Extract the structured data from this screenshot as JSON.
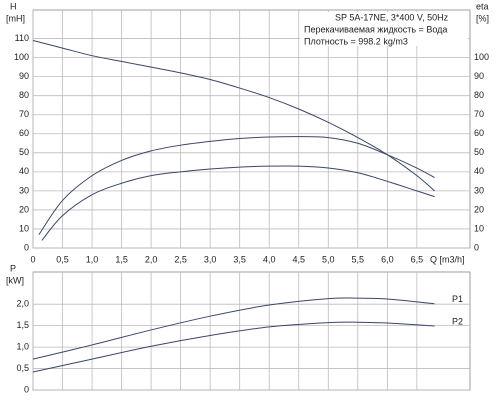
{
  "chart_data": [
    {
      "type": "line",
      "grid": true,
      "line_color": "#3a4668",
      "annotations": [
        "SP 5A-17NE, 3*400 V, 50Hz",
        "Перекачиваемая жидкость = Вода",
        "Плотность = 998.2 kg/m3"
      ],
      "ylabel": "H",
      "yunit": "[mH]",
      "y2label": "eta",
      "y2unit": "[%]",
      "xlabel": "Q [m3/h]",
      "xlim": [
        0,
        7.4
      ],
      "xticks": [
        0,
        {
          "value": 0.5,
          "label": "0,5"
        },
        {
          "value": 1,
          "label": "1,0"
        },
        {
          "value": 1.5,
          "label": "1,5"
        },
        {
          "value": 2,
          "label": "2,0"
        },
        {
          "value": 2.5,
          "label": "2,5"
        },
        {
          "value": 3,
          "label": "3,0"
        },
        {
          "value": 3.5,
          "label": "3,5"
        },
        {
          "value": 4,
          "label": "4,0"
        },
        {
          "value": 4.5,
          "label": "4,5"
        },
        {
          "value": 5,
          "label": "5,0"
        },
        {
          "value": 5.5,
          "label": "5,5"
        },
        {
          "value": 6,
          "label": "6,0"
        },
        {
          "value": 6.5,
          "label": "6,5"
        }
      ],
      "ylim": [
        0,
        125
      ],
      "yticks": [
        0,
        10,
        20,
        30,
        40,
        50,
        60,
        70,
        80,
        90,
        100,
        110
      ],
      "y2lim": [
        0,
        125
      ],
      "y2ticks": [
        0,
        10,
        20,
        30,
        40,
        50,
        60,
        70,
        80,
        90,
        100
      ],
      "series": [
        {
          "x": [
            0,
            0.5,
            1,
            1.5,
            2,
            2.5,
            3,
            3.5,
            4,
            4.5,
            5,
            5.5,
            6,
            6.5,
            6.8
          ],
          "values": [
            109,
            105,
            101,
            98,
            95,
            92,
            88.5,
            84,
            79,
            73,
            66,
            58,
            49,
            38,
            30
          ]
        },
        {
          "axis": "y2",
          "x": [
            0.1,
            0.5,
            1,
            1.5,
            2,
            2.5,
            3,
            3.5,
            4,
            4.5,
            5,
            5.5,
            6,
            6.5,
            6.8
          ],
          "values": [
            7,
            25,
            38,
            46,
            51,
            54,
            56,
            57.5,
            58.3,
            58.5,
            58,
            55,
            49,
            42,
            37
          ]
        },
        {
          "axis": "y2",
          "x": [
            0.15,
            0.5,
            1,
            1.5,
            2,
            2.5,
            3,
            3.5,
            4,
            4.5,
            5,
            5.5,
            6,
            6.5,
            6.8
          ],
          "values": [
            4,
            17,
            28,
            34,
            38,
            40,
            41.5,
            42.5,
            43,
            43,
            42,
            39.5,
            35,
            30,
            27
          ]
        }
      ]
    },
    {
      "type": "line",
      "grid": true,
      "line_color": "#3a4668",
      "ylabel": "P",
      "yunit": "[kW]",
      "xlim": [
        0,
        7.4
      ],
      "xticks": [
        0,
        0.5,
        1,
        1.5,
        2,
        2.5,
        3,
        3.5,
        4,
        4.5,
        5,
        5.5,
        6,
        6.5
      ],
      "ylim": [
        0,
        2.75
      ],
      "yticks": [
        0,
        {
          "value": 0.5,
          "label": "0,5"
        },
        {
          "value": 1,
          "label": "1,0"
        },
        {
          "value": 1.5,
          "label": "1,5"
        },
        {
          "value": 2,
          "label": "2,0"
        }
      ],
      "series": [
        {
          "name": "P1",
          "x": [
            0,
            1,
            2,
            3,
            4,
            5,
            5.5,
            6,
            6.8
          ],
          "values": [
            0.72,
            1.05,
            1.4,
            1.72,
            1.98,
            2.13,
            2.14,
            2.12,
            2.01
          ]
        },
        {
          "name": "P2",
          "x": [
            0,
            1,
            2,
            3,
            4,
            5,
            5.5,
            6,
            6.8
          ],
          "values": [
            0.42,
            0.72,
            1.02,
            1.27,
            1.47,
            1.57,
            1.58,
            1.56,
            1.49
          ]
        }
      ]
    }
  ]
}
